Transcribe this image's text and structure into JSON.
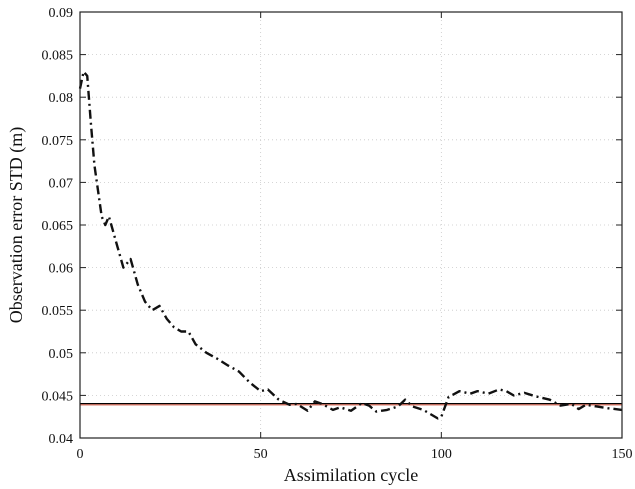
{
  "chart_data": {
    "type": "line",
    "title": "",
    "xlabel": "Assimilation cycle",
    "ylabel": "Observation error STD (m)",
    "xlim": [
      0,
      150
    ],
    "ylim": [
      0.04,
      0.09
    ],
    "xticks": [
      0,
      50,
      100,
      150
    ],
    "xtick_labels": [
      "0",
      "50",
      "100",
      "150"
    ],
    "yticks": [
      0.04,
      0.045,
      0.05,
      0.055,
      0.06,
      0.065,
      0.07,
      0.075,
      0.08,
      0.085,
      0.09
    ],
    "ytick_labels": [
      "0.04",
      "0.045",
      "0.05",
      "0.055",
      "0.06",
      "0.065",
      "0.07",
      "0.075",
      "0.08",
      "0.085",
      "0.09"
    ],
    "grid": true,
    "legend": "none",
    "series": [
      {
        "style": "dash-dot",
        "color": "#111111",
        "x": [
          0,
          1,
          2,
          3,
          4,
          5,
          6,
          7,
          8,
          10,
          12,
          14,
          16,
          18,
          20,
          22,
          24,
          26,
          28,
          30,
          32,
          35,
          38,
          41,
          44,
          47,
          50,
          52,
          55,
          58,
          60,
          63,
          65,
          67,
          70,
          72,
          75,
          78,
          80,
          82,
          85,
          88,
          90,
          92,
          95,
          97,
          99,
          100,
          102,
          105,
          108,
          110,
          113,
          116,
          118,
          120,
          123,
          126,
          130,
          133,
          136,
          138,
          140,
          143,
          146,
          150
        ],
        "y": [
          0.081,
          0.083,
          0.0825,
          0.077,
          0.072,
          0.069,
          0.066,
          0.065,
          0.066,
          0.063,
          0.06,
          0.061,
          0.058,
          0.056,
          0.055,
          0.0555,
          0.054,
          0.053,
          0.0525,
          0.0525,
          0.051,
          0.05,
          0.0493,
          0.0485,
          0.0478,
          0.0465,
          0.0455,
          0.0457,
          0.0445,
          0.0439,
          0.044,
          0.0432,
          0.0443,
          0.044,
          0.0433,
          0.0436,
          0.0432,
          0.0441,
          0.0438,
          0.0431,
          0.0433,
          0.0437,
          0.0445,
          0.0437,
          0.0433,
          0.0428,
          0.0423,
          0.0425,
          0.0448,
          0.0455,
          0.0452,
          0.0455,
          0.0452,
          0.0457,
          0.0455,
          0.045,
          0.0453,
          0.0449,
          0.0445,
          0.0438,
          0.044,
          0.0434,
          0.0439,
          0.0437,
          0.0435,
          0.0433
        ]
      },
      {
        "style": "solid",
        "color": "#000000",
        "x": [
          0,
          150
        ],
        "y": [
          0.044,
          0.044
        ]
      },
      {
        "style": "solid",
        "color": "#d97a6a",
        "x": [
          0,
          150
        ],
        "y": [
          0.0439,
          0.0439
        ]
      }
    ]
  }
}
